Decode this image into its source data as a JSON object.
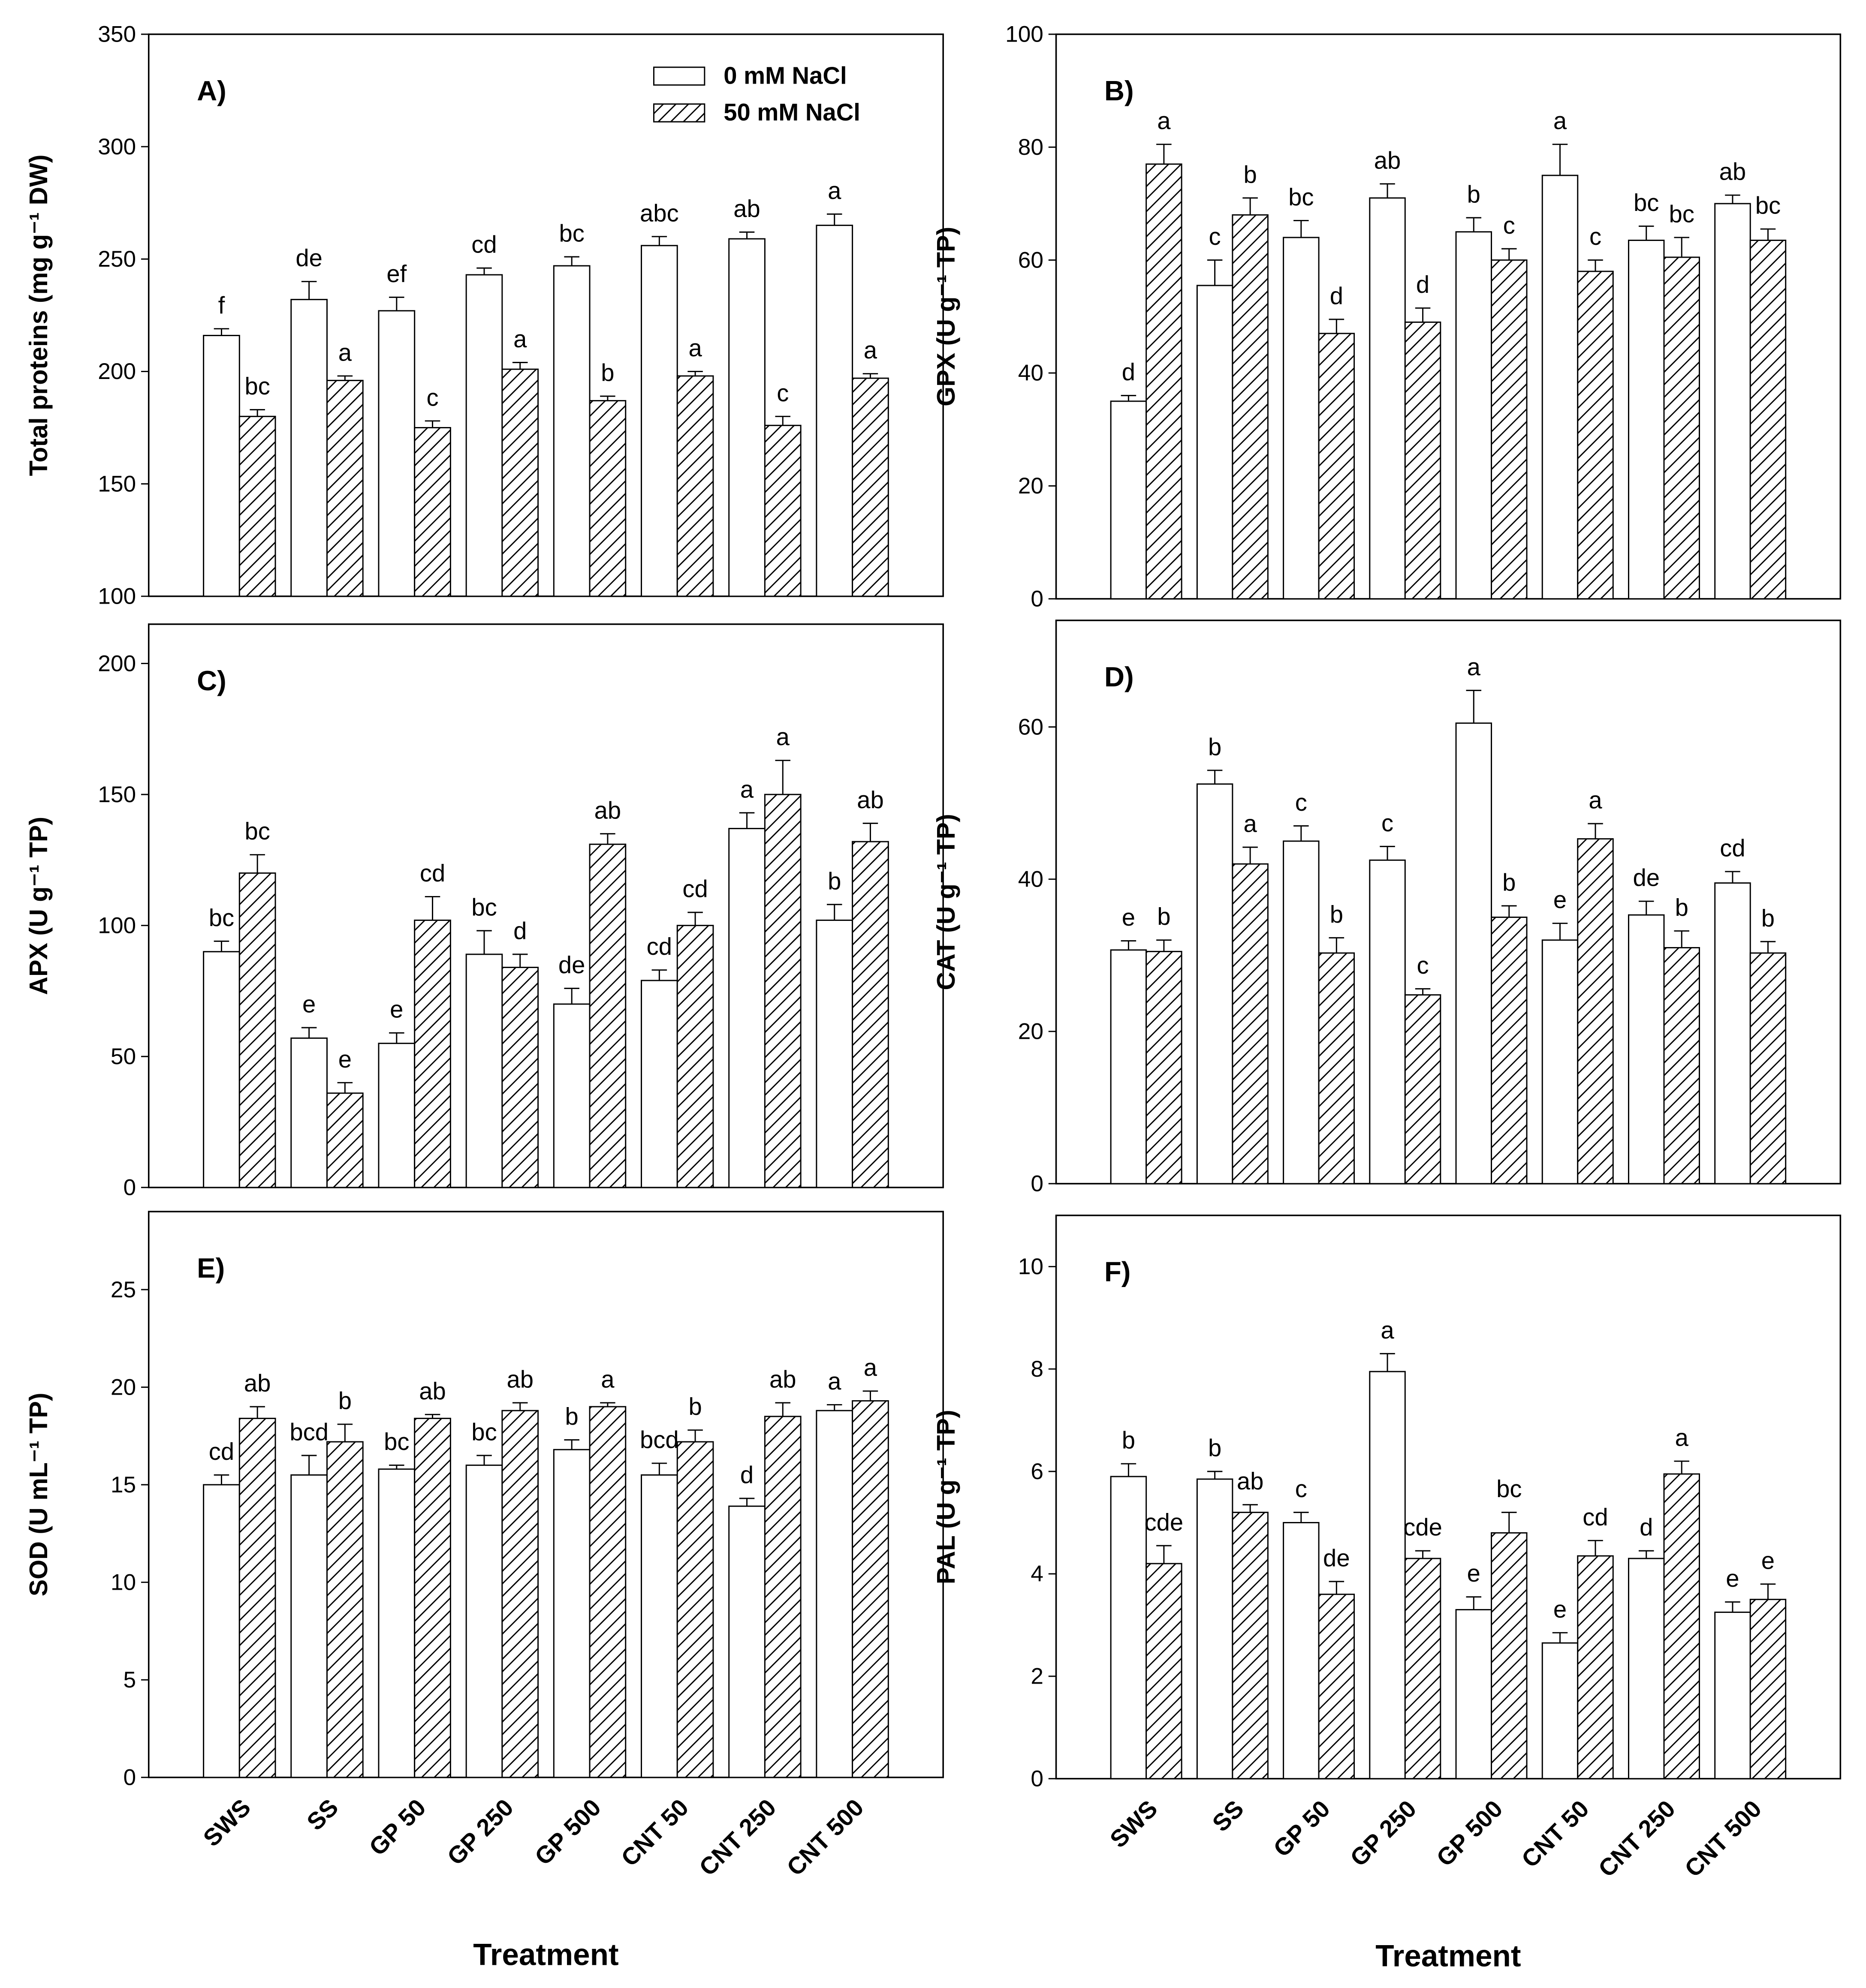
{
  "chart_data": [
    {
      "type": "bar",
      "panel_label": "A)",
      "ylabel": "Total proteins (mg g⁻¹ DW)",
      "ylim": [
        100,
        350
      ],
      "yticks": [
        100,
        150,
        200,
        250,
        300,
        350
      ],
      "legend": "upper right",
      "series": [
        {
          "name": "0 mM NaCl",
          "color": "#ffffff",
          "hatch": false,
          "values": [
            216,
            232,
            227,
            243,
            247,
            256,
            259,
            265
          ],
          "errors": [
            3,
            8,
            6,
            3,
            4,
            4,
            3,
            5
          ],
          "letters": [
            "f",
            "de",
            "ef",
            "cd",
            "bc",
            "abc",
            "ab",
            "a"
          ]
        },
        {
          "name": "50 mM NaCl",
          "color": "#ffffff",
          "hatch": true,
          "values": [
            180,
            196,
            175,
            201,
            187,
            198,
            176,
            197
          ],
          "errors": [
            3,
            2,
            3,
            3,
            2,
            2,
            4,
            2
          ],
          "letters": [
            "bc",
            "a",
            "c",
            "a",
            "b",
            "a",
            "c",
            "a"
          ]
        }
      ]
    },
    {
      "type": "bar",
      "panel_label": "B)",
      "ylabel": "GPX (U g⁻¹ TP)",
      "ylim": [
        0,
        100
      ],
      "yticks": [
        0,
        20,
        40,
        60,
        80,
        100
      ],
      "series": [
        {
          "color": "#ffffff",
          "hatch": false,
          "values": [
            35,
            55.5,
            64,
            71,
            65,
            75,
            63.5,
            70
          ],
          "errors": [
            1,
            4.5,
            3,
            2.5,
            2.5,
            5.5,
            2.5,
            1.5
          ],
          "letters": [
            "d",
            "c",
            "bc",
            "ab",
            "b",
            "a",
            "bc",
            "ab"
          ]
        },
        {
          "color": "#ffffff",
          "hatch": true,
          "values": [
            77,
            68,
            47,
            49,
            60,
            58,
            60.5,
            63.5
          ],
          "errors": [
            3.5,
            3,
            2.5,
            2.5,
            2,
            2,
            3.5,
            2
          ],
          "letters": [
            "a",
            "b",
            "d",
            "d",
            "c",
            "c",
            "bc",
            "bc"
          ]
        }
      ]
    },
    {
      "type": "bar",
      "panel_label": "C)",
      "ylabel": "APX (U g⁻¹ TP)",
      "ylim": [
        0,
        215
      ],
      "yticks": [
        0,
        50,
        100,
        150,
        200
      ],
      "series": [
        {
          "color": "#ffffff",
          "hatch": false,
          "values": [
            90,
            57,
            55,
            89,
            70,
            79,
            137,
            102
          ],
          "errors": [
            4,
            4,
            4,
            9,
            6,
            4,
            6,
            6
          ],
          "letters": [
            "bc",
            "e",
            "e",
            "bc",
            "de",
            "cd",
            "a",
            "b"
          ]
        },
        {
          "color": "#ffffff",
          "hatch": true,
          "values": [
            120,
            36,
            102,
            84,
            131,
            100,
            150,
            132
          ],
          "errors": [
            7,
            4,
            9,
            5,
            4,
            5,
            13,
            7
          ],
          "letters": [
            "bc",
            "e",
            "cd",
            "d",
            "ab",
            "cd",
            "a",
            "ab"
          ]
        }
      ]
    },
    {
      "type": "bar",
      "panel_label": "D)",
      "ylabel": "CAT (U g⁻¹ TP)",
      "ylim": [
        0,
        74
      ],
      "yticks": [
        0,
        20,
        40,
        60
      ],
      "series": [
        {
          "color": "#ffffff",
          "hatch": false,
          "values": [
            30.7,
            52.5,
            45,
            42.5,
            60.5,
            32,
            35.3,
            39.5
          ],
          "errors": [
            1.2,
            1.8,
            2,
            1.8,
            4.3,
            2.2,
            1.8,
            1.5
          ],
          "letters": [
            "e",
            "b",
            "c",
            "c",
            "a",
            "e",
            "de",
            "cd"
          ]
        },
        {
          "color": "#ffffff",
          "hatch": true,
          "values": [
            30.5,
            42,
            30.3,
            24.8,
            35,
            45.3,
            31,
            30.3
          ],
          "errors": [
            1.5,
            2.2,
            2,
            0.8,
            1.5,
            2,
            2.2,
            1.5
          ],
          "letters": [
            "b",
            "a",
            "b",
            "c",
            "b",
            "a",
            "b",
            "b"
          ]
        }
      ]
    },
    {
      "type": "bar",
      "panel_label": "E)",
      "ylabel": "SOD (U mL⁻¹ TP)",
      "xlabel": "Treatment",
      "ylim": [
        0,
        29
      ],
      "yticks": [
        0,
        5,
        10,
        15,
        20,
        25
      ],
      "categories": [
        "SWS",
        "SS",
        "GP 50",
        "GP 250",
        "GP 500",
        "CNT 50",
        "CNT 250",
        "CNT 500"
      ],
      "series": [
        {
          "color": "#ffffff",
          "hatch": false,
          "values": [
            15,
            15.5,
            15.8,
            16,
            16.8,
            15.5,
            13.9,
            18.8
          ],
          "errors": [
            0.5,
            1,
            0.2,
            0.5,
            0.5,
            0.6,
            0.4,
            0.3
          ],
          "letters": [
            "cd",
            "bcd",
            "bc",
            "bc",
            "b",
            "bcd",
            "d",
            "a"
          ]
        },
        {
          "color": "#ffffff",
          "hatch": true,
          "values": [
            18.4,
            17.2,
            18.4,
            18.8,
            19,
            17.2,
            18.5,
            19.3
          ],
          "errors": [
            0.6,
            0.9,
            0.2,
            0.4,
            0.2,
            0.6,
            0.7,
            0.5
          ],
          "letters": [
            "ab",
            "b",
            "ab",
            "ab",
            "a",
            "b",
            "ab",
            "a"
          ]
        }
      ]
    },
    {
      "type": "bar",
      "panel_label": "F)",
      "ylabel": "PAL (U g⁻¹ TP)",
      "xlabel": "Treatment",
      "ylim": [
        0,
        11
      ],
      "yticks": [
        0,
        2,
        4,
        6,
        8,
        10
      ],
      "categories": [
        "SWS",
        "SS",
        "GP 50",
        "GP 250",
        "GP 500",
        "CNT 50",
        "CNT 250",
        "CNT 500"
      ],
      "series": [
        {
          "color": "#ffffff",
          "hatch": false,
          "values": [
            5.9,
            5.85,
            5,
            7.95,
            3.3,
            2.65,
            4.3,
            3.25
          ],
          "errors": [
            0.25,
            0.15,
            0.2,
            0.35,
            0.25,
            0.2,
            0.15,
            0.2
          ],
          "letters": [
            "b",
            "b",
            "c",
            "a",
            "e",
            "e",
            "d",
            "e"
          ]
        },
        {
          "color": "#ffffff",
          "hatch": true,
          "values": [
            4.2,
            5.2,
            3.6,
            4.3,
            4.8,
            4.35,
            5.95,
            3.5
          ],
          "errors": [
            0.35,
            0.15,
            0.25,
            0.15,
            0.4,
            0.3,
            0.25,
            0.3
          ],
          "letters": [
            "cde",
            "ab",
            "de",
            "cde",
            "bc",
            "cd",
            "a",
            "e"
          ]
        }
      ]
    }
  ]
}
